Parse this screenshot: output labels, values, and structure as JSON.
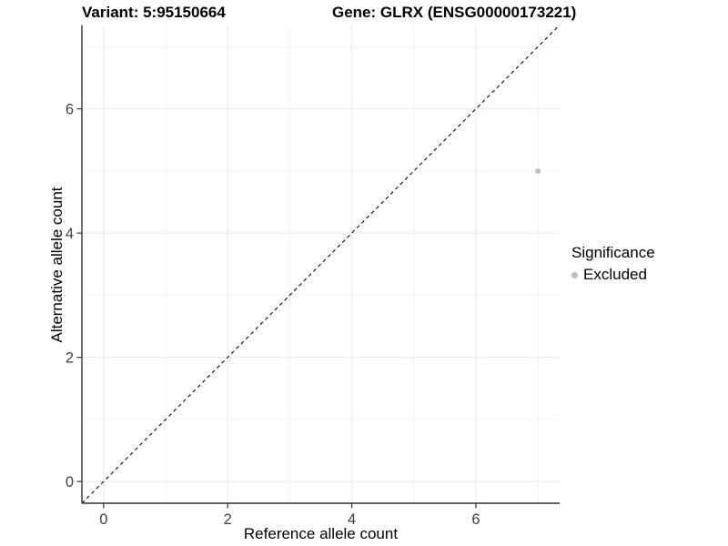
{
  "chart_data": {
    "type": "scatter",
    "titles": {
      "variant": "Variant: 5:95150664",
      "gene": "Gene: GLRX (ENSG00000173221)"
    },
    "xlabel": "Reference allele count",
    "ylabel": "Alternative allele count",
    "xlim": [
      -0.35,
      7.35
    ],
    "ylim": [
      -0.35,
      7.35
    ],
    "x_major_ticks": [
      0,
      2,
      4,
      6
    ],
    "y_major_ticks": [
      0,
      2,
      4,
      6
    ],
    "x_minor_ticks": [
      1,
      3,
      5,
      7
    ],
    "y_minor_ticks": [
      1,
      3,
      5,
      7
    ],
    "grid": true,
    "reference_line": {
      "type": "identity",
      "style": "dashed",
      "color": "#1a1a1a"
    },
    "series": [
      {
        "name": "Excluded",
        "color": "#bebebe",
        "points": [
          {
            "x": 7,
            "y": 5
          }
        ]
      }
    ],
    "legend": {
      "title": "Significance",
      "position": "right",
      "entries": [
        {
          "label": "Excluded",
          "color": "#bebebe"
        }
      ]
    },
    "colors": {
      "axis_line": "#333333",
      "tick_label": "#404040",
      "grid_major": "#ececec",
      "grid_minor": "#f2f2f2",
      "background": "#ffffff"
    }
  }
}
